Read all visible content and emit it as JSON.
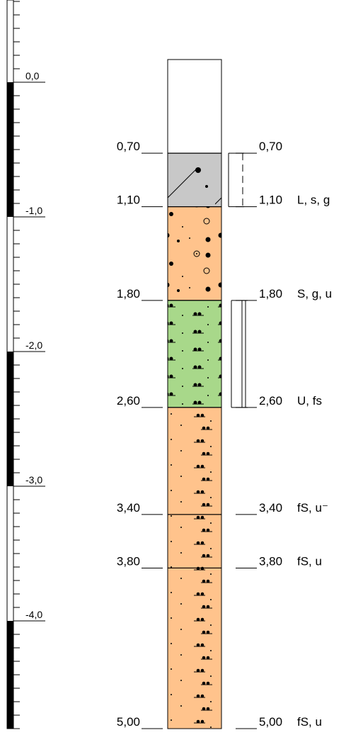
{
  "scale": {
    "labels": [
      "0,0",
      "-1,0",
      "-2,0",
      "-3,0",
      "-4,0"
    ]
  },
  "layers": [
    {
      "bottom": "0,70",
      "color": "#ffffff"
    },
    {
      "bottom": "1,10",
      "color": "#c8c8c8",
      "soil": "L, s, g"
    },
    {
      "bottom": "1,80",
      "color": "#ffc38c",
      "soil": "S, g, u"
    },
    {
      "bottom": "2,60",
      "color": "#a8d88a",
      "soil": "U, fs"
    },
    {
      "bottom": "3,40",
      "color": "#ffc38c",
      "soil": "fS, u⁻"
    },
    {
      "bottom": "3,80",
      "color": "#ffc38c",
      "soil": "fS, u"
    },
    {
      "bottom": "5,00",
      "color": "#ffc38c",
      "soil": "fS, u"
    }
  ]
}
